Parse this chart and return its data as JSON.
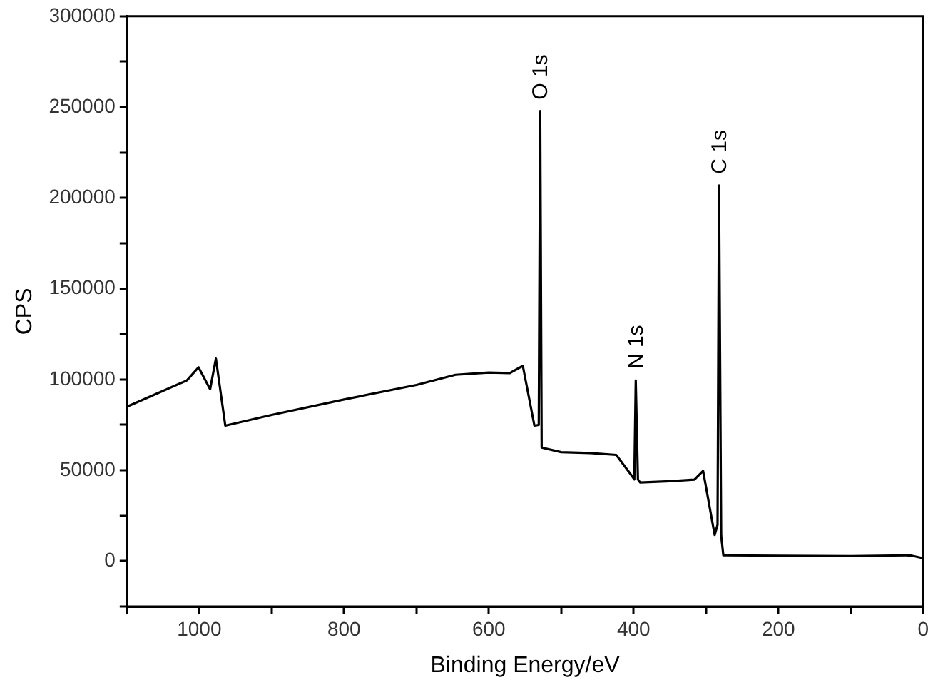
{
  "chart_data": {
    "type": "line",
    "xlabel": "Binding Energy/eV",
    "ylabel": "CPS",
    "x": [
      1100,
      1060,
      1017,
      1001,
      985,
      977,
      964,
      900,
      800,
      700,
      646,
      600,
      571,
      553,
      537,
      531,
      529,
      527,
      500,
      460,
      424,
      403,
      399,
      397,
      394,
      391,
      350,
      316,
      304,
      288,
      284,
      282,
      279,
      276,
      200,
      100,
      18,
      0
    ],
    "series": [
      {
        "color": "#000000",
        "values": [
          85000,
          92000,
          99500,
          106700,
          94600,
          111500,
          74600,
          80500,
          89000,
          97000,
          102600,
          103800,
          103500,
          107500,
          74600,
          75000,
          247800,
          62500,
          60000,
          59500,
          58500,
          47300,
          45000,
          99500,
          45000,
          43300,
          44000,
          44900,
          49700,
          14400,
          20000,
          206900,
          14000,
          3200,
          3000,
          2800,
          3200,
          1600
        ]
      }
    ],
    "xlim": [
      1100,
      0
    ],
    "xticks": [
      {
        "value": 1100,
        "label": null
      },
      1000,
      {
        "value": 900,
        "label": null
      },
      800,
      {
        "value": 700,
        "label": null
      },
      600,
      {
        "value": 500,
        "label": null
      },
      400,
      {
        "value": 300,
        "label": null
      },
      200,
      {
        "value": 100,
        "label": null
      },
      0
    ],
    "ylim": [
      -25000,
      300000
    ],
    "yticks": [
      {
        "value": -25000,
        "label": null
      },
      0,
      {
        "value": 25000,
        "label": null
      },
      50000,
      {
        "value": 75000,
        "label": null
      },
      100000,
      {
        "value": 125000,
        "label": null
      },
      150000,
      {
        "value": 175000,
        "label": null
      },
      200000,
      {
        "value": 225000,
        "label": null
      },
      250000,
      {
        "value": 275000,
        "label": null
      },
      300000
    ],
    "grid": false,
    "legend": false,
    "marker": "none",
    "line_style": "solid",
    "annotations": [
      {
        "text": "O 1s",
        "x": 529,
        "y": 247800
      },
      {
        "text": "N 1s",
        "x": 397,
        "y": 99500
      },
      {
        "text": "C 1s",
        "x": 282,
        "y": 206900
      }
    ]
  }
}
